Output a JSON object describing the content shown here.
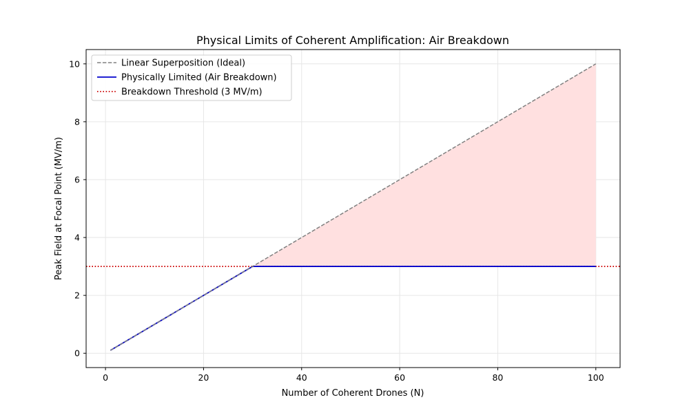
{
  "chart_data": {
    "type": "line",
    "title": "Physical Limits of Coherent Amplification: Air Breakdown",
    "xlabel": "Number of Coherent Drones (N)",
    "ylabel": "Peak Field at Focal Point (MV/m)",
    "xlim": [
      -3.95,
      104.95
    ],
    "ylim": [
      -0.4945,
      10.4945
    ],
    "xticks": [
      0,
      20,
      40,
      60,
      80,
      100
    ],
    "yticks": [
      0,
      2,
      4,
      6,
      8,
      10
    ],
    "grid": true,
    "legend_position": "top-left",
    "series": [
      {
        "name": "Linear Superposition (Ideal)",
        "style": "dashed",
        "color": "#808080",
        "x": [
          1,
          100
        ],
        "y": [
          0.1,
          10.0
        ]
      },
      {
        "name": "Physically Limited (Air Breakdown)",
        "style": "solid",
        "color": "#0000cc",
        "x": [
          1,
          30,
          100
        ],
        "y": [
          0.1,
          3.0,
          3.0
        ]
      },
      {
        "name": "Breakdown Threshold (3 MV/m)",
        "style": "dotted",
        "color": "#cc0000",
        "hline": 3.0
      }
    ],
    "fill_between": {
      "x": [
        30,
        100
      ],
      "lower": [
        3.0,
        3.0
      ],
      "upper": [
        3.0,
        10.0
      ],
      "color": "#ffe0e0"
    }
  }
}
